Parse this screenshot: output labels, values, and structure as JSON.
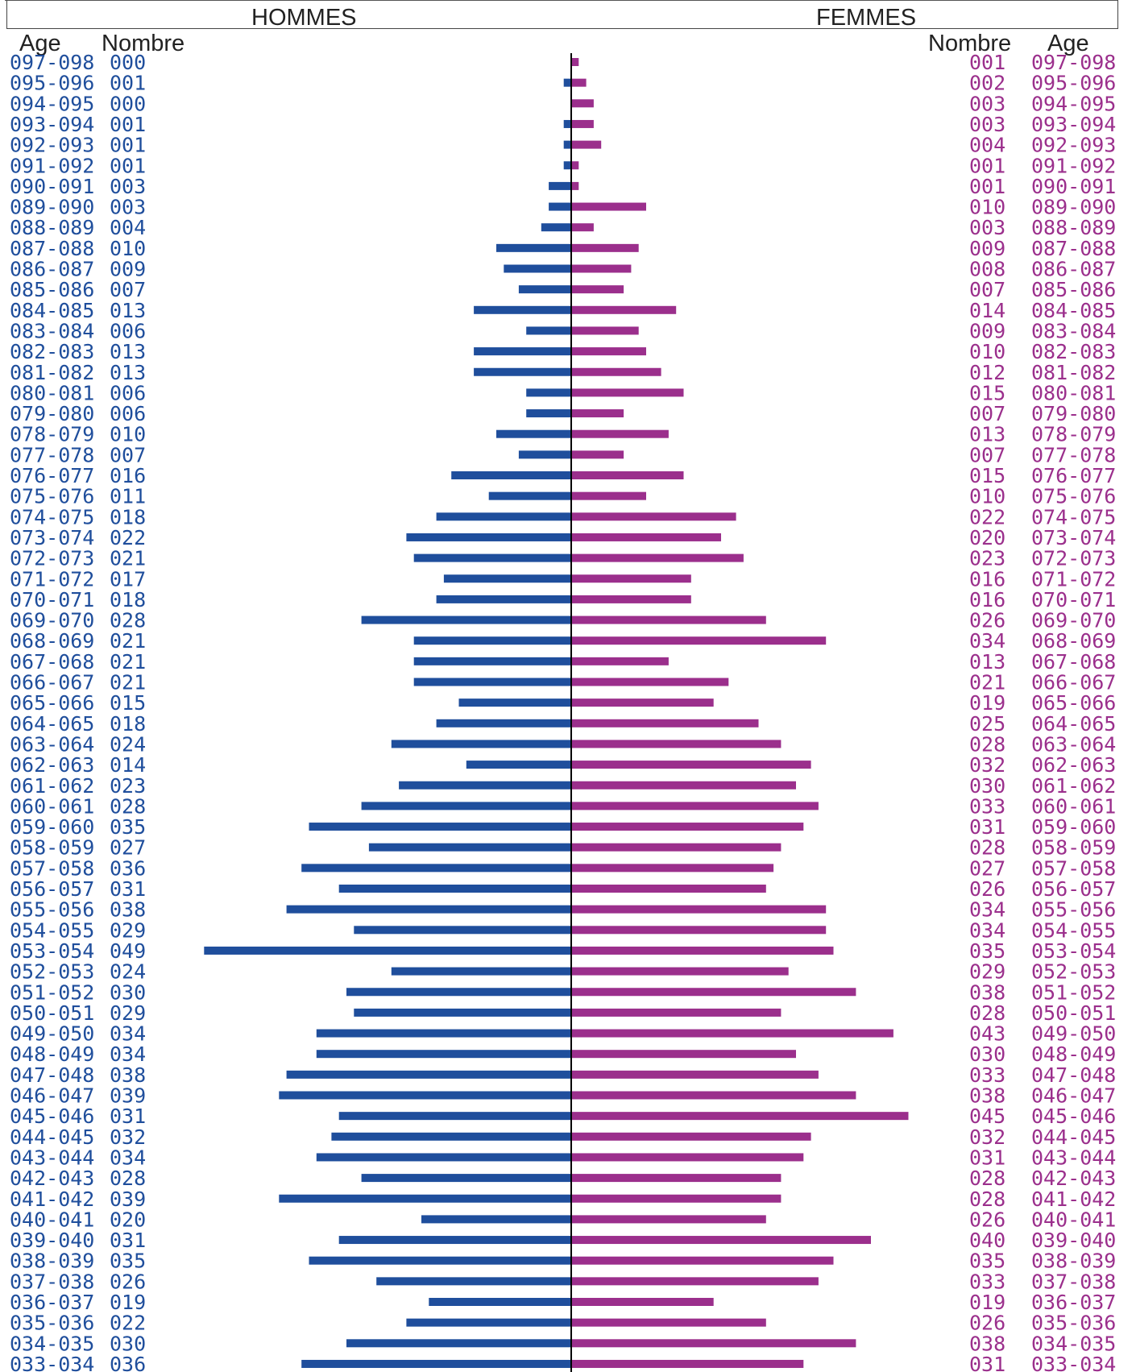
{
  "header": {
    "men_label": "HOMMES",
    "women_label": "FEMMES",
    "left_age_label": "Age",
    "left_count_label": "Nombre",
    "right_count_label": "Nombre",
    "right_age_label": "Age"
  },
  "colors": {
    "men": "#1f4e9c",
    "women": "#9b2f8c",
    "axis": "#000000"
  },
  "chart_data": {
    "type": "bar",
    "orientation": "horizontal-pyramid",
    "categories": [
      "097-098",
      "095-096",
      "094-095",
      "093-094",
      "092-093",
      "091-092",
      "090-091",
      "089-090",
      "088-089",
      "087-088",
      "086-087",
      "085-086",
      "084-085",
      "083-084",
      "082-083",
      "081-082",
      "080-081",
      "079-080",
      "078-079",
      "077-078",
      "076-077",
      "075-076",
      "074-075",
      "073-074",
      "072-073",
      "071-072",
      "070-071",
      "069-070",
      "068-069",
      "067-068",
      "066-067",
      "065-066",
      "064-065",
      "063-064",
      "062-063",
      "061-062",
      "060-061",
      "059-060",
      "058-059",
      "057-058",
      "056-057",
      "055-056",
      "054-055",
      "053-054",
      "052-053",
      "051-052",
      "050-051",
      "049-050",
      "048-049",
      "047-048",
      "046-047",
      "045-046",
      "044-045",
      "043-044",
      "042-043",
      "041-042",
      "040-041",
      "039-040",
      "038-039",
      "037-038",
      "036-037",
      "035-036",
      "034-035",
      "033-034"
    ],
    "series": [
      {
        "name": "HOMMES",
        "labels": [
          "000",
          "001",
          "000",
          "001",
          "001",
          "001",
          "003",
          "003",
          "004",
          "010",
          "009",
          "007",
          "013",
          "006",
          "013",
          "013",
          "006",
          "006",
          "010",
          "007",
          "016",
          "011",
          "018",
          "022",
          "021",
          "017",
          "018",
          "028",
          "021",
          "021",
          "021",
          "015",
          "018",
          "024",
          "014",
          "023",
          "028",
          "035",
          "027",
          "036",
          "031",
          "038",
          "029",
          "049",
          "024",
          "030",
          "029",
          "034",
          "034",
          "038",
          "039",
          "031",
          "032",
          "034",
          "028",
          "039",
          "020",
          "031",
          "035",
          "026",
          "019",
          "022",
          "030",
          "036"
        ],
        "values": [
          0,
          1,
          0,
          1,
          1,
          1,
          3,
          3,
          4,
          10,
          9,
          7,
          13,
          6,
          13,
          13,
          6,
          6,
          10,
          7,
          16,
          11,
          18,
          22,
          21,
          17,
          18,
          28,
          21,
          21,
          21,
          15,
          18,
          24,
          14,
          23,
          28,
          35,
          27,
          36,
          31,
          38,
          29,
          49,
          24,
          30,
          29,
          34,
          34,
          38,
          39,
          31,
          32,
          34,
          28,
          39,
          20,
          31,
          35,
          26,
          19,
          22,
          30,
          36
        ]
      },
      {
        "name": "FEMMES",
        "labels": [
          "001",
          "002",
          "003",
          "003",
          "004",
          "001",
          "001",
          "010",
          "003",
          "009",
          "008",
          "007",
          "014",
          "009",
          "010",
          "012",
          "015",
          "007",
          "013",
          "007",
          "015",
          "010",
          "022",
          "020",
          "023",
          "016",
          "016",
          "026",
          "034",
          "013",
          "021",
          "019",
          "025",
          "028",
          "032",
          "030",
          "033",
          "031",
          "028",
          "027",
          "026",
          "034",
          "034",
          "035",
          "029",
          "038",
          "028",
          "043",
          "030",
          "033",
          "038",
          "045",
          "032",
          "031",
          "028",
          "028",
          "026",
          "040",
          "035",
          "033",
          "019",
          "026",
          "038",
          "031"
        ],
        "values": [
          1,
          2,
          3,
          3,
          4,
          1,
          1,
          10,
          3,
          9,
          8,
          7,
          14,
          9,
          10,
          12,
          15,
          7,
          13,
          7,
          15,
          10,
          22,
          20,
          23,
          16,
          16,
          26,
          34,
          13,
          21,
          19,
          25,
          28,
          32,
          30,
          33,
          31,
          28,
          27,
          26,
          34,
          34,
          35,
          29,
          38,
          28,
          43,
          30,
          33,
          38,
          45,
          32,
          31,
          28,
          28,
          26,
          40,
          35,
          33,
          19,
          26,
          38,
          31
        ]
      }
    ]
  }
}
